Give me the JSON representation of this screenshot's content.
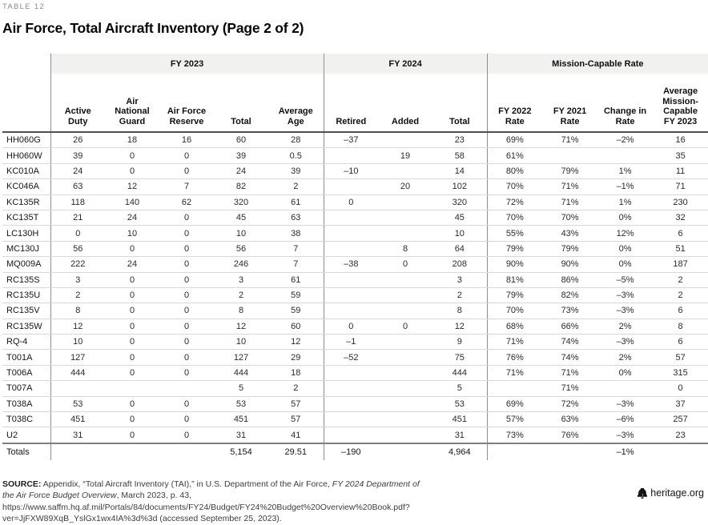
{
  "meta": {
    "eyebrow": "TABLE 12",
    "title": "Air Force, Total Aircraft Inventory (Page 2 of 2)"
  },
  "table": {
    "groups": [
      {
        "label": "FY 2023",
        "span": 5
      },
      {
        "label": "FY 2024",
        "span": 3
      },
      {
        "label": "Mission-Capable Rate",
        "span": 4
      }
    ],
    "columns": [
      "Active Duty",
      "Air National Guard",
      "Air Force Reserve",
      "Total",
      "Average Age",
      "Retired",
      "Added",
      "Total",
      "FY 2022 Rate",
      "FY 2021 Rate",
      "Change in Rate",
      "Average Mission-Capable FY 2023"
    ],
    "rows": [
      {
        "name": "HH060G",
        "cells": [
          "26",
          "18",
          "16",
          "60",
          "28",
          "–37",
          "",
          "23",
          "69%",
          "71%",
          "–2%",
          "16"
        ]
      },
      {
        "name": "HH060W",
        "cells": [
          "39",
          "0",
          "0",
          "39",
          "0.5",
          "",
          "19",
          "58",
          "61%",
          "",
          "",
          "35"
        ]
      },
      {
        "name": "KC010A",
        "cells": [
          "24",
          "0",
          "0",
          "24",
          "39",
          "–10",
          "",
          "14",
          "80%",
          "79%",
          "1%",
          "11"
        ]
      },
      {
        "name": "KC046A",
        "cells": [
          "63",
          "12",
          "7",
          "82",
          "2",
          "",
          "20",
          "102",
          "70%",
          "71%",
          "–1%",
          "71"
        ]
      },
      {
        "name": "KC135R",
        "cells": [
          "118",
          "140",
          "62",
          "320",
          "61",
          "0",
          "",
          "320",
          "72%",
          "71%",
          "1%",
          "230"
        ]
      },
      {
        "name": "KC135T",
        "cells": [
          "21",
          "24",
          "0",
          "45",
          "63",
          "",
          "",
          "45",
          "70%",
          "70%",
          "0%",
          "32"
        ]
      },
      {
        "name": "LC130H",
        "cells": [
          "0",
          "10",
          "0",
          "10",
          "38",
          "",
          "",
          "10",
          "55%",
          "43%",
          "12%",
          "6"
        ]
      },
      {
        "name": "MC130J",
        "cells": [
          "56",
          "0",
          "0",
          "56",
          "7",
          "",
          "8",
          "64",
          "79%",
          "79%",
          "0%",
          "51"
        ]
      },
      {
        "name": "MQ009A",
        "cells": [
          "222",
          "24",
          "0",
          "246",
          "7",
          "–38",
          "0",
          "208",
          "90%",
          "90%",
          "0%",
          "187"
        ]
      },
      {
        "name": "RC135S",
        "cells": [
          "3",
          "0",
          "0",
          "3",
          "61",
          "",
          "",
          "3",
          "81%",
          "86%",
          "–5%",
          "2"
        ]
      },
      {
        "name": "RC135U",
        "cells": [
          "2",
          "0",
          "0",
          "2",
          "59",
          "",
          "",
          "2",
          "79%",
          "82%",
          "–3%",
          "2"
        ]
      },
      {
        "name": "RC135V",
        "cells": [
          "8",
          "0",
          "0",
          "8",
          "59",
          "",
          "",
          "8",
          "70%",
          "73%",
          "–3%",
          "6"
        ]
      },
      {
        "name": "RC135W",
        "cells": [
          "12",
          "0",
          "0",
          "12",
          "60",
          "0",
          "0",
          "12",
          "68%",
          "66%",
          "2%",
          "8"
        ]
      },
      {
        "name": "RQ-4",
        "cells": [
          "10",
          "0",
          "0",
          "10",
          "12",
          "–1",
          "",
          "9",
          "71%",
          "74%",
          "–3%",
          "6"
        ]
      },
      {
        "name": "T001A",
        "cells": [
          "127",
          "0",
          "0",
          "127",
          "29",
          "–52",
          "",
          "75",
          "76%",
          "74%",
          "2%",
          "57"
        ]
      },
      {
        "name": "T006A",
        "cells": [
          "444",
          "0",
          "0",
          "444",
          "18",
          "",
          "",
          "444",
          "71%",
          "71%",
          "0%",
          "315"
        ]
      },
      {
        "name": "T007A",
        "cells": [
          "",
          "",
          "",
          "5",
          "2",
          "",
          "",
          "5",
          "",
          "71%",
          "",
          "0"
        ]
      },
      {
        "name": "T038A",
        "cells": [
          "53",
          "0",
          "0",
          "53",
          "57",
          "",
          "",
          "53",
          "69%",
          "72%",
          "–3%",
          "37"
        ]
      },
      {
        "name": "T038C",
        "cells": [
          "451",
          "0",
          "0",
          "451",
          "57",
          "",
          "",
          "451",
          "57%",
          "63%",
          "–6%",
          "257"
        ]
      },
      {
        "name": "U2",
        "cells": [
          "31",
          "0",
          "0",
          "31",
          "41",
          "",
          "",
          "31",
          "73%",
          "76%",
          "–3%",
          "23"
        ]
      }
    ],
    "totals": {
      "name": "Totals",
      "cells": [
        "",
        "",
        "",
        "5,154",
        "29.51",
        "–190",
        "",
        "4,964",
        "",
        "",
        "–1%",
        ""
      ]
    }
  },
  "source": {
    "label": "SOURCE:",
    "pre_italic": " Appendix, “Total Aircraft Inventory (TAI),” in U.S. Department of the Air Force, ",
    "italic": "FY 2024 Department of the Air Force Budget Overview",
    "post_italic": ", March 2023, p. 43, https://www.saffm.hq.af.mil/Portals/84/documents/FY24/Budget/FY24%20Budget%20Overview%20Book.pdf?ver=JjFXW89XqB_YslGx1wx4IA%3d%3d (accessed September 25, 2023)."
  },
  "footer": {
    "brand": "heritage.org",
    "icon": "liberty-bell-icon"
  }
}
